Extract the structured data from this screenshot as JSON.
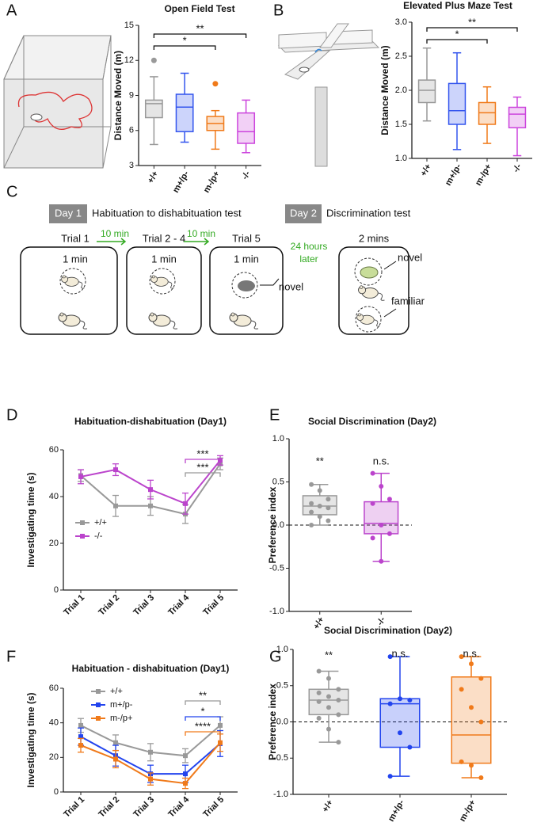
{
  "panel_labels": [
    "A",
    "B",
    "C",
    "D",
    "E",
    "F",
    "G"
  ],
  "protocol": {
    "day1": "Day 1",
    "day1_title": "Habituation to dishabituation test",
    "day2": "Day 2",
    "day2_title": "Discrimination test",
    "trials": [
      "Trial 1",
      "Trial 2 - 4",
      "Trial 5"
    ],
    "durations": [
      "1 min",
      "1 min",
      "1 min"
    ],
    "intervals": [
      "10 min",
      "10 min"
    ],
    "delay": [
      "24 hours",
      "later"
    ],
    "day2_duration": "2 mins",
    "novel": "novel",
    "familiar": "familiar"
  },
  "chart_data": [
    {
      "type": "box",
      "title": "Open Field Test",
      "y_label": "Distance Moved (m)",
      "categories": [
        "+/+",
        "m+/p-",
        "m-/p+",
        "-/-"
      ],
      "colors": [
        "#999999",
        "#3355ee",
        "#f07a1a",
        "#cc44dd"
      ],
      "ylim": [
        3,
        15
      ],
      "yticks": [
        3,
        6,
        9,
        12,
        15
      ],
      "boxes": [
        {
          "whisker_low": 4.8,
          "q1": 7.1,
          "median": 8.3,
          "q3": 8.6,
          "whisker_high": 10.6,
          "outliers": [
            12.0
          ]
        },
        {
          "whisker_low": 5.0,
          "q1": 5.9,
          "median": 8.0,
          "q3": 9.1,
          "whisker_high": 10.9,
          "outliers": []
        },
        {
          "whisker_low": 4.4,
          "q1": 6.0,
          "median": 6.6,
          "q3": 7.2,
          "whisker_high": 7.7,
          "outliers": [
            10.0
          ]
        },
        {
          "whisker_low": 4.1,
          "q1": 4.9,
          "median": 5.9,
          "q3": 7.5,
          "whisker_high": 8.6,
          "outliers": []
        }
      ],
      "annotations": [
        "**",
        "*"
      ]
    },
    {
      "type": "box",
      "title": "Elevated Plus Maze Test",
      "y_label": "Distance Moved (m)",
      "categories": [
        "+/+",
        "m+/p-",
        "m-/p+",
        "-/-"
      ],
      "colors": [
        "#999999",
        "#3355ee",
        "#f07a1a",
        "#cc44dd"
      ],
      "ylim": [
        1,
        3
      ],
      "yticks": [
        {
          "value": 1,
          "label": "1.0"
        },
        1.5,
        {
          "value": 2,
          "label": "2.0"
        },
        2.5,
        {
          "value": 3,
          "label": "3.0"
        }
      ],
      "boxes": [
        {
          "whisker_low": 1.55,
          "q1": 1.82,
          "median": 2.0,
          "q3": 2.15,
          "whisker_high": 2.62,
          "outliers": []
        },
        {
          "whisker_low": 1.13,
          "q1": 1.5,
          "median": 1.7,
          "q3": 2.1,
          "whisker_high": 2.55,
          "outliers": []
        },
        {
          "whisker_low": 1.22,
          "q1": 1.5,
          "median": 1.67,
          "q3": 1.82,
          "whisker_high": 2.05,
          "outliers": []
        },
        {
          "whisker_low": 1.04,
          "q1": 1.45,
          "median": 1.65,
          "q3": 1.75,
          "whisker_high": 1.9,
          "outliers": []
        }
      ],
      "annotations": [
        "**",
        "*"
      ]
    },
    {
      "type": "line",
      "title": "Habituation-dishabituation (Day1)",
      "y_label": "Investigating time (s)",
      "categories": [
        "Trial 1",
        "Trial 2",
        "Trial 3",
        "Trial 4",
        "Trial 5"
      ],
      "ylim": [
        0,
        60
      ],
      "yticks": [
        0,
        20,
        40,
        60
      ],
      "legend": "lower left",
      "series": [
        {
          "name": "+/+",
          "color": "#999999",
          "values": [
            49,
            36,
            36,
            32.5,
            54
          ],
          "errors": [
            2.5,
            4.5,
            4,
            4,
            2.5
          ]
        },
        {
          "name": "-/-",
          "color": "#bb44cc",
          "values": [
            48.5,
            51.5,
            43,
            37,
            55.5
          ],
          "errors": [
            3,
            2.5,
            4,
            4.5,
            2
          ]
        }
      ],
      "annotations": [
        "***",
        "***"
      ]
    },
    {
      "type": "box",
      "title": "Social Discrimination (Day2)",
      "y_label": "Preference index",
      "categories": [
        "+/+",
        "-/-"
      ],
      "colors": [
        "#999999",
        "#bb44cc"
      ],
      "ylim": [
        -1,
        1
      ],
      "yticks": [
        {
          "value": -1,
          "label": "-1.0"
        },
        -0.5,
        {
          "value": 0,
          "label": "0.0"
        },
        0.5,
        {
          "value": 1,
          "label": "1.0"
        }
      ],
      "hline": 0,
      "boxes": [
        {
          "whisker_low": 0.0,
          "q1": 0.12,
          "median": 0.22,
          "q3": 0.34,
          "whisker_high": 0.47,
          "outliers": [],
          "points": [
            0.47,
            0.4,
            0.3,
            0.25,
            0.22,
            0.2,
            0.15,
            0.1,
            0.05,
            0.0
          ]
        },
        {
          "whisker_low": -0.42,
          "q1": -0.1,
          "median": 0.02,
          "q3": 0.27,
          "whisker_high": 0.6,
          "outliers": [],
          "points": [
            0.6,
            0.45,
            0.3,
            0.25,
            0.0,
            -0.1,
            -0.15,
            -0.42
          ]
        }
      ],
      "annotations": [
        "**",
        "n.s."
      ]
    },
    {
      "type": "line",
      "title": "Habituation - dishabituation (Day1)",
      "y_label": "Investigating time (s)",
      "categories": [
        "Trial 1",
        "Trial 2",
        "Trial 3",
        "Trial 4",
        "Trial 5"
      ],
      "ylim": [
        0,
        60
      ],
      "yticks": [
        0,
        20,
        40,
        60
      ],
      "legend": "upper left",
      "series": [
        {
          "name": "+/+",
          "color": "#999999",
          "values": [
            38.5,
            28.5,
            23,
            21,
            38.5
          ],
          "errors": [
            4,
            4.5,
            5,
            4,
            5
          ]
        },
        {
          "name": "m+/p-",
          "color": "#2244ee",
          "values": [
            32,
            21,
            10.5,
            10.5,
            28
          ],
          "errors": [
            5,
            6,
            5,
            5,
            7.5
          ]
        },
        {
          "name": "m-/p+",
          "color": "#f07a1a",
          "values": [
            27,
            19,
            7.5,
            5,
            28.5
          ],
          "errors": [
            4,
            5,
            3.5,
            3,
            5
          ]
        }
      ],
      "annotations": [
        "**",
        "*",
        "****"
      ]
    },
    {
      "type": "box",
      "title": "Social Discrimination (Day2)",
      "y_label": "Preference index",
      "categories": [
        "+/+",
        "m+/p-",
        "m-/p+"
      ],
      "colors": [
        "#999999",
        "#2244ee",
        "#f07a1a"
      ],
      "ylim": [
        -1,
        1
      ],
      "yticks": [
        {
          "value": -1,
          "label": "-1.0"
        },
        -0.5,
        {
          "value": 0,
          "label": "0.0"
        },
        0.5,
        {
          "value": 1,
          "label": "1.0"
        }
      ],
      "hline": 0,
      "boxes": [
        {
          "whisker_low": -0.28,
          "q1": 0.1,
          "median": 0.3,
          "q3": 0.45,
          "whisker_high": 0.7,
          "outliers": [],
          "points": [
            0.7,
            0.6,
            0.45,
            0.4,
            0.35,
            0.3,
            0.28,
            0.2,
            0.1,
            0.05,
            -0.1,
            -0.28
          ]
        },
        {
          "whisker_low": -0.75,
          "q1": -0.35,
          "median": 0.25,
          "q3": 0.32,
          "whisker_high": 0.9,
          "outliers": [],
          "points": [
            0.9,
            0.32,
            0.3,
            0.25,
            -0.15,
            -0.35,
            -0.75
          ]
        },
        {
          "whisker_low": -0.77,
          "q1": -0.57,
          "median": -0.18,
          "q3": 0.62,
          "whisker_high": 0.9,
          "outliers": [],
          "points": [
            0.9,
            0.8,
            0.6,
            0.45,
            0.2,
            0.0,
            -0.55,
            -0.6,
            -0.77
          ]
        }
      ],
      "annotations": [
        "**",
        "n.s.",
        "n.s."
      ]
    }
  ]
}
